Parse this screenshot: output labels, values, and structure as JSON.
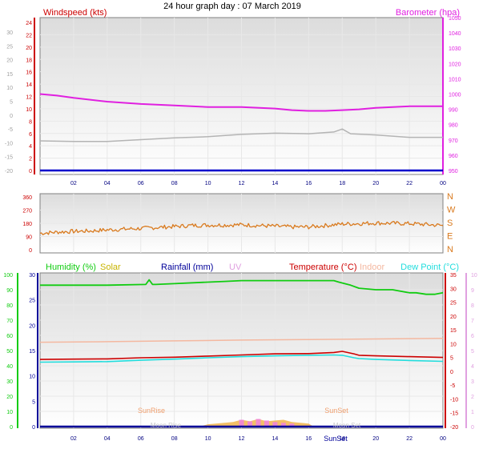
{
  "page_title": "24 hour graph day : 07 March 2019",
  "colors": {
    "windspeed": "#cc0000",
    "gust": "#b4b4b4",
    "barometer": "#e020e0",
    "direction": "#d97a1e",
    "humidity": "#11cc11",
    "solar": "#c8b400",
    "rainfall": "#000099",
    "uv": "#e0a0e0",
    "temperature": "#cc0000",
    "indoor": "#f4b8a0",
    "dewpoint": "#22dddd",
    "sunlabel": "#f0a070",
    "solar_fill": "#f0b040",
    "uv_fill": "#f080e0"
  },
  "x_ticks": [
    "02",
    "04",
    "06",
    "08",
    "10",
    "12",
    "14",
    "16",
    "18",
    "20",
    "22",
    "00"
  ],
  "chart_data": [
    {
      "type": "line",
      "left_label": "Windspeed (kts)",
      "right_label": "Barometer (hpa)",
      "outer_left_ticks": [
        "30",
        "25",
        "20",
        "15",
        "10",
        "5",
        "0",
        "-5",
        "-10",
        "-15",
        "-20"
      ],
      "left_ticks": [
        "24",
        "22",
        "20",
        "18",
        "16",
        "14",
        "12",
        "10",
        "8",
        "6",
        "4",
        "2",
        "0"
      ],
      "right_ticks": [
        "1050",
        "1040",
        "1030",
        "1020",
        "1010",
        "1000",
        "990",
        "980",
        "970",
        "960",
        "950"
      ],
      "wind_range": [
        0,
        25
      ],
      "baro_range": [
        950,
        1050
      ],
      "outer_range": [
        -20,
        30
      ],
      "series": {
        "windspeed_x": [
          0,
          24
        ],
        "windspeed": [
          0,
          0
        ],
        "gust_x": [
          0,
          2,
          4,
          6,
          8,
          10,
          12,
          14,
          16,
          17.5,
          18,
          18.5,
          20,
          22,
          24
        ],
        "gust": [
          5.0,
          4.9,
          4.9,
          5.2,
          5.5,
          5.7,
          6.1,
          6.3,
          6.2,
          6.5,
          7.0,
          6.2,
          6.0,
          5.6,
          5.6
        ],
        "barometer_x": [
          0,
          1,
          2,
          4,
          6,
          8,
          10,
          12,
          14,
          15,
          16,
          17,
          18,
          19,
          20,
          22,
          24
        ],
        "barometer": [
          1000,
          999,
          997.5,
          995,
          993.5,
          992.5,
          991.5,
          991.5,
          990.5,
          989.5,
          989,
          989,
          989.5,
          990,
          991,
          992,
          992
        ]
      }
    },
    {
      "type": "line",
      "left_ticks": [
        "360",
        "270",
        "180",
        "90",
        "0"
      ],
      "right_ticks": [
        "N",
        "W",
        "S",
        "E",
        "N"
      ],
      "range": [
        0,
        360
      ],
      "series": {
        "direction_x": [
          0,
          1,
          2,
          3,
          4,
          5,
          6,
          7,
          8,
          9,
          10,
          11,
          12,
          13,
          14,
          15,
          16,
          17,
          18,
          19,
          20,
          21,
          22,
          23,
          24
        ],
        "direction": [
          112,
          120,
          125,
          128,
          135,
          140,
          145,
          152,
          158,
          165,
          168,
          168,
          170,
          165,
          160,
          155,
          155,
          165,
          175,
          178,
          182,
          180,
          178,
          172,
          165
        ]
      }
    },
    {
      "type": "line",
      "labels": [
        "Humidity (%)",
        "Solar",
        "Rainfall (mm)",
        "UV",
        "Temperature (°C)",
        "Indoor",
        "Dew Point (°C)"
      ],
      "left_ticks_humidity": [
        "100",
        "90",
        "80",
        "70",
        "60",
        "50",
        "40",
        "30",
        "20",
        "10",
        "0"
      ],
      "left_ticks_rain": [
        "30",
        "25",
        "20",
        "15",
        "10",
        "5",
        "0"
      ],
      "right_ticks_uv": [
        "10",
        "9",
        "8",
        "7",
        "6",
        "5",
        "4",
        "3",
        "2",
        "1",
        "0"
      ],
      "right_ticks_temp": [
        "35",
        "30",
        "25",
        "20",
        "15",
        "10",
        "5",
        "0",
        "-5",
        "-10",
        "-15",
        "-20"
      ],
      "humidity_range": [
        0,
        100
      ],
      "temp_range": [
        -20,
        35
      ],
      "annotations": [
        "SunRise",
        "SunSet",
        "Moon Rise",
        "Moon Set",
        "SunSet"
      ],
      "series": {
        "humidity_x": [
          0,
          4,
          6.3,
          6.5,
          6.7,
          6.9,
          8,
          10,
          11,
          12,
          14,
          16,
          17.5,
          17.8,
          18.5,
          19,
          20,
          21,
          22,
          22.2,
          22.4,
          23,
          23.5,
          24
        ],
        "humidity": [
          93,
          93,
          93.5,
          96.5,
          93.5,
          93.5,
          94,
          95,
          95.5,
          96,
          96,
          96,
          96,
          95,
          93,
          91,
          90,
          90,
          88,
          88,
          88,
          87,
          87,
          88
        ],
        "temperature_x": [
          0,
          2,
          4,
          6,
          8,
          10,
          12,
          14,
          16,
          17.5,
          18,
          18.7,
          19,
          20,
          22,
          24
        ],
        "temperature": [
          4.3,
          4.4,
          4.5,
          4.9,
          5.1,
          5.5,
          5.9,
          6.3,
          6.4,
          6.8,
          7.2,
          6.3,
          5.8,
          5.6,
          5.3,
          5.0
        ],
        "dewpoint_x": [
          0,
          2,
          4,
          6,
          8,
          10,
          12,
          14,
          16,
          17.5,
          18,
          18.7,
          19,
          20,
          22,
          24
        ],
        "dewpoint": [
          3.3,
          3.4,
          3.5,
          4.0,
          4.4,
          4.9,
          5.3,
          5.6,
          5.8,
          5.9,
          5.8,
          4.9,
          4.6,
          4.3,
          3.9,
          3.6
        ],
        "indoor_x": [
          0,
          4,
          8,
          12,
          16,
          20,
          24
        ],
        "indoor": [
          10.5,
          10.7,
          11.0,
          11.3,
          11.5,
          11.7,
          11.9
        ],
        "rainfall_x": [
          0,
          24
        ],
        "rainfall": [
          0,
          0
        ],
        "solar_x": [
          9.5,
          10,
          11,
          11.5,
          12,
          12.5,
          13,
          13.5,
          14,
          14.5,
          15,
          15.5,
          16,
          16.3
        ],
        "solar": [
          0,
          1.5,
          2.5,
          3,
          4.5,
          3.5,
          5,
          3.5,
          4,
          4.5,
          3,
          2.5,
          2,
          0
        ],
        "uv_x": [
          11.5,
          12,
          12.5,
          13,
          13.5,
          14,
          14.5,
          15,
          15.5
        ],
        "uv": [
          0,
          0.45,
          0.35,
          0.5,
          0.4,
          0.3,
          0.25,
          0.2,
          0
        ]
      }
    }
  ]
}
